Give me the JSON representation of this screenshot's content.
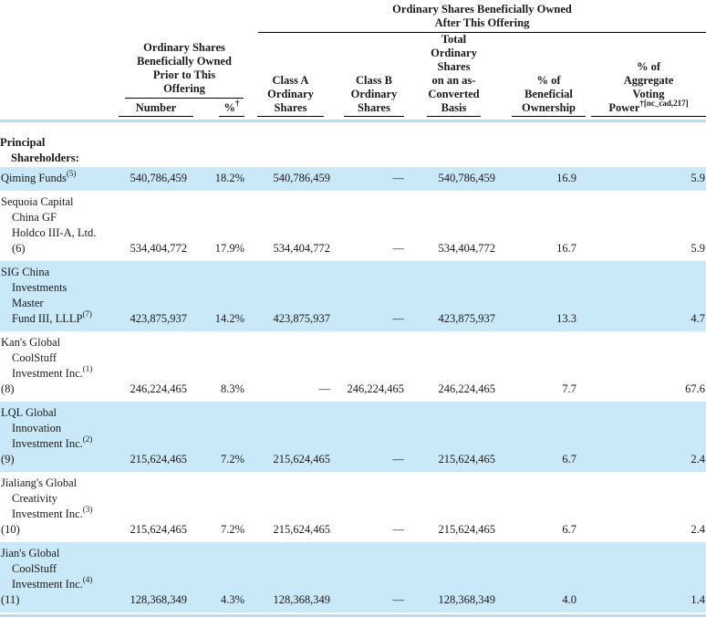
{
  "colors": {
    "highlight": "#c9e8f8",
    "rule_blue": "#b5ddf0",
    "text": "#1a1a1a"
  },
  "header": {
    "after_group": [
      "Ordinary Shares Beneficially Owned",
      "After This Offering"
    ],
    "prior_group": [
      "Ordinary Shares",
      "Beneficially Owned",
      "Prior to This",
      "Offering"
    ],
    "columns": {
      "number": "Number",
      "pct": {
        "text": "%",
        "sup": "†"
      },
      "class_a": [
        "Class A",
        "Ordinary",
        "Shares"
      ],
      "class_b": [
        "Class B",
        "Ordinary",
        "Shares"
      ],
      "total": [
        "Total",
        "Ordinary",
        "Shares",
        "on an as-",
        "Converted",
        "Basis"
      ],
      "beneficial": [
        "% of",
        "Beneficial",
        "Ownership"
      ],
      "voting": {
        "lines": [
          "% of",
          "Aggregate",
          "Voting"
        ],
        "last": "Power",
        "sup": "†[nc_cad,217]"
      }
    }
  },
  "section_label": {
    "line1": "Principal",
    "line2": "Shareholders:"
  },
  "rows": [
    {
      "name_lines": [
        {
          "text": "Qiming Funds",
          "sup": "(5)",
          "indent": false
        }
      ],
      "highlight": true,
      "number": "540,786,459",
      "pct": "18.2%",
      "class_a": "540,786,459",
      "class_b": "—",
      "total": "540,786,459",
      "beneficial": "16.9",
      "voting": "5.9"
    },
    {
      "name_lines": [
        {
          "text": "Sequoia Capital",
          "indent": false
        },
        {
          "text": "China GF",
          "indent": true
        },
        {
          "text": "Holdco III-A, Ltd.",
          "indent": true
        },
        {
          "text": "(6)",
          "indent": true
        }
      ],
      "highlight": false,
      "number": "534,404,772",
      "pct": "17.9%",
      "class_a": "534,404,772",
      "class_b": "—",
      "total": "534,404,772",
      "beneficial": "16.7",
      "voting": "5.9"
    },
    {
      "name_lines": [
        {
          "text": "SIG China",
          "indent": false
        },
        {
          "text": "Investments",
          "indent": true
        },
        {
          "text": "Master",
          "indent": true
        },
        {
          "text": "Fund III, LLLP",
          "sup": "(7)",
          "indent": true
        }
      ],
      "highlight": true,
      "number": "423,875,937",
      "pct": "14.2%",
      "class_a": "423,875,937",
      "class_b": "—",
      "total": "423,875,937",
      "beneficial": "13.3",
      "voting": "4.7"
    },
    {
      "name_lines": [
        {
          "text": "Kan's Global",
          "indent": false
        },
        {
          "text": "CoolStuff",
          "indent": true
        },
        {
          "text": "Investment Inc.",
          "sup": "(1)",
          "indent": true
        },
        {
          "text": "(8)",
          "indent": false
        }
      ],
      "highlight": false,
      "number": "246,224,465",
      "pct": "8.3%",
      "class_a": "—",
      "class_b": "246,224,465",
      "total": "246,224,465",
      "beneficial": "7.7",
      "voting": "67.6"
    },
    {
      "name_lines": [
        {
          "text": "LQL Global",
          "indent": false
        },
        {
          "text": "Innovation",
          "indent": true
        },
        {
          "text": "Investment Inc.",
          "sup": "(2)",
          "indent": true
        },
        {
          "text": "(9)",
          "indent": false
        }
      ],
      "highlight": true,
      "number": "215,624,465",
      "pct": "7.2%",
      "class_a": "215,624,465",
      "class_b": "—",
      "total": "215,624,465",
      "beneficial": "6.7",
      "voting": "2.4"
    },
    {
      "name_lines": [
        {
          "text": "Jialiang's Global",
          "indent": false
        },
        {
          "text": "Creativity",
          "indent": true
        },
        {
          "text": "Investment Inc.",
          "sup": "(3)",
          "indent": true
        },
        {
          "text": "(10)",
          "indent": false
        }
      ],
      "highlight": false,
      "number": "215,624,465",
      "pct": "7.2%",
      "class_a": "215,624,465",
      "class_b": "—",
      "total": "215,624,465",
      "beneficial": "6.7",
      "voting": "2.4"
    },
    {
      "name_lines": [
        {
          "text": "Jian's Global",
          "indent": false
        },
        {
          "text": "CoolStuff",
          "indent": true
        },
        {
          "text": "Investment Inc.",
          "sup": "(4)",
          "indent": true
        },
        {
          "text": "(11)",
          "indent": false
        }
      ],
      "highlight": true,
      "number": "128,368,349",
      "pct": "4.3%",
      "class_a": "128,368,349",
      "class_b": "—",
      "total": "128,368,349",
      "beneficial": "4.0",
      "voting": "1.4"
    }
  ]
}
